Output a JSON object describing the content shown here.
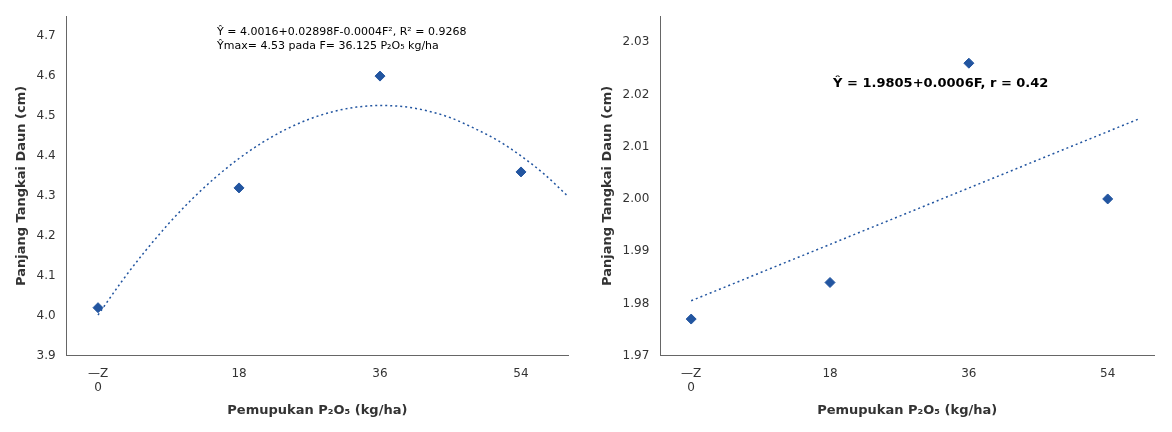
{
  "chart_data": [
    {
      "type": "scatter",
      "xlabel": "Pemupukan P₂O₅ (kg/ha)",
      "ylabel": "Panjang Tangkai Daun (cm)",
      "xlim": [
        -4,
        60
      ],
      "ylim": [
        3.9,
        4.75
      ],
      "xticks": [
        {
          "value": 0,
          "label": "—Z\n0"
        },
        18,
        36,
        54
      ],
      "yticks": [
        3.9,
        {
          "value": 4.0,
          "label": "4.0"
        },
        4.1,
        4.2,
        4.3,
        4.4,
        4.5,
        4.6,
        4.7
      ],
      "grid": false,
      "annotations": [
        "Ŷ = 4.0016+0.02898F-0.0004F², R² = 0.9268",
        "Ŷmax= 4.53 pada F= 36.125 P₂O₅ kg/ha"
      ],
      "series": [
        {
          "type": "line",
          "color": "#2255a0",
          "line_style": "dotted",
          "x": [
            0,
            3,
            6,
            9,
            12,
            15,
            18,
            21,
            24,
            27,
            30,
            33,
            36,
            39,
            42,
            45,
            48,
            51,
            54,
            57,
            60
          ],
          "values": [
            4.0016,
            4.08494,
            4.16108,
            4.23002,
            4.29176,
            4.3463,
            4.39364,
            4.43378,
            4.46672,
            4.49246,
            4.511,
            4.52234,
            4.52648,
            4.52342,
            4.51316,
            4.4957,
            4.46954,
            4.43918,
            4.40012,
            4.35386,
            4.2988
          ]
        },
        {
          "type": "scatter",
          "color": "#2255a0",
          "marker": "diamond",
          "x": [
            0,
            18,
            36,
            54
          ],
          "values": [
            4.02,
            4.32,
            4.6,
            4.36
          ]
        }
      ]
    },
    {
      "type": "scatter",
      "xlabel": "Pemupukan P₂O₅ (kg/ha)",
      "ylabel": "Panjang Tangkai Daun (cm)",
      "xlim": [
        -4,
        60
      ],
      "ylim": [
        1.97,
        2.035
      ],
      "xticks": [
        {
          "value": 0,
          "label": "—Z\n0"
        },
        18,
        36,
        54
      ],
      "yticks": [
        1.97,
        1.98,
        1.99,
        {
          "value": 2.0,
          "label": "2.00"
        },
        2.01,
        2.02,
        2.03
      ],
      "grid": false,
      "annotations": [
        "Ŷ = 1.9805+0.0006F, r = 0.42"
      ],
      "series": [
        {
          "type": "line",
          "color": "#2255a0",
          "line_style": "dotted",
          "x": [
            0,
            58
          ],
          "values": [
            1.9805,
            2.0153
          ]
        },
        {
          "type": "scatter",
          "color": "#2255a0",
          "marker": "diamond",
          "x": [
            0,
            18,
            36,
            54
          ],
          "values": [
            1.977,
            1.984,
            2.026,
            2.0
          ]
        }
      ]
    }
  ]
}
